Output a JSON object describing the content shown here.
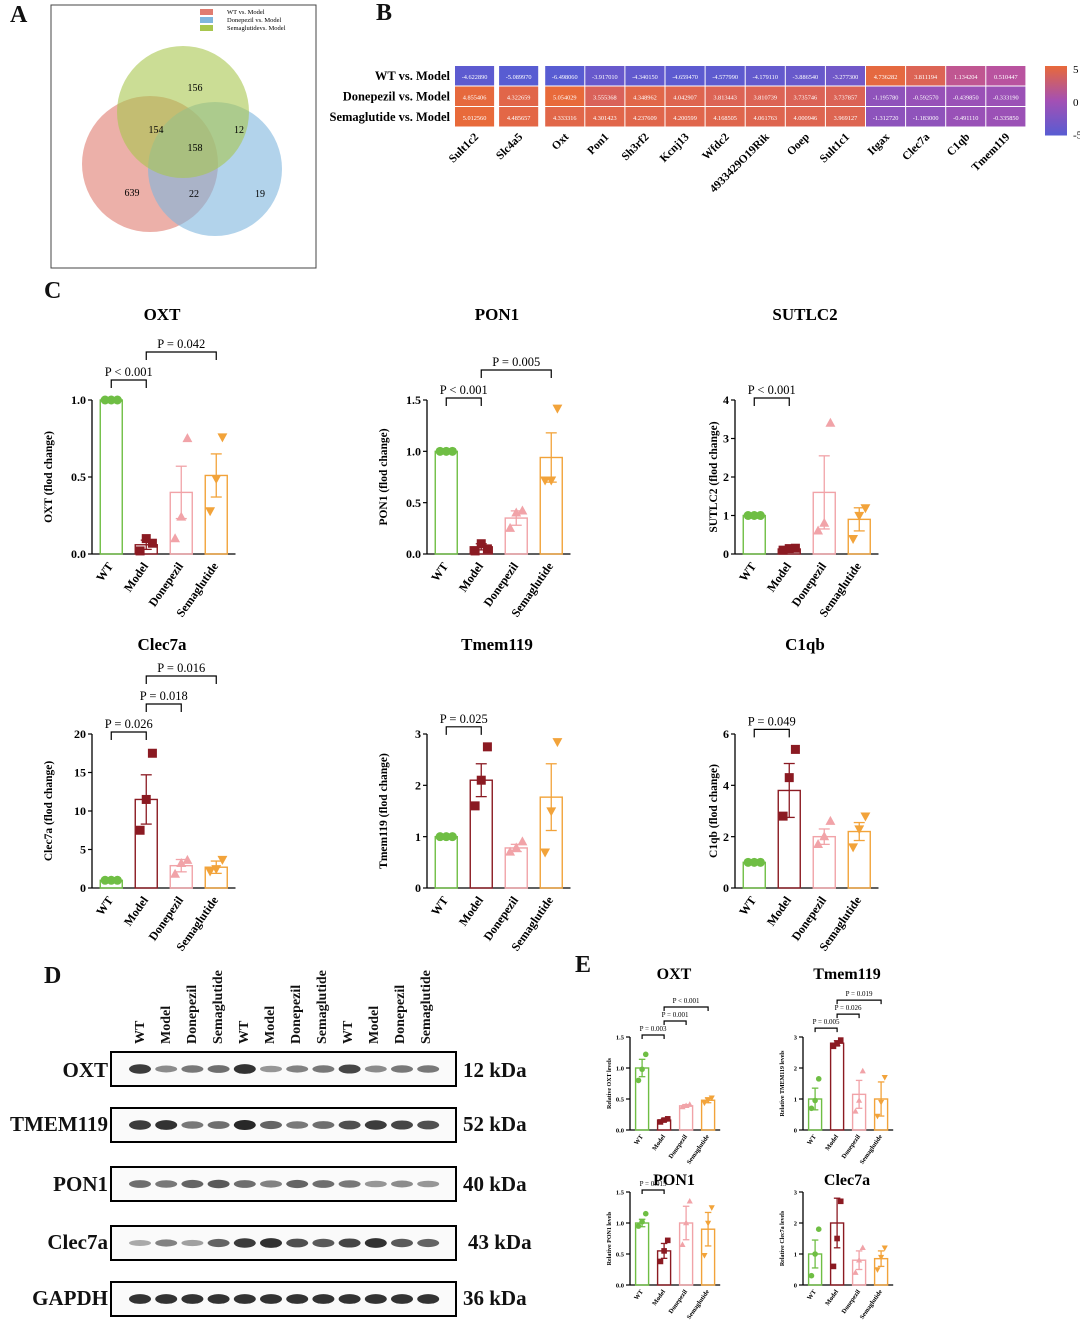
{
  "panels": {
    "a": "A",
    "b": "B",
    "c": "C",
    "d": "D",
    "e": "E"
  },
  "venn": {
    "legend": [
      "WT vs. Model",
      "Donepezil vs. Model",
      "Semaglutidevs. Model"
    ],
    "colors": [
      "#e07c70",
      "#7fb6dd",
      "#a8c64e"
    ],
    "regions": {
      "sema_only": "156",
      "sema_wt": "154",
      "sema_done": "12",
      "all": "158",
      "wt_only": "639",
      "wt_done": "22",
      "done_only": "19"
    }
  },
  "heatmap": {
    "rows": [
      "WT vs. Model",
      "Donepezil vs. Model",
      "Semaglutide vs. Model"
    ],
    "cols": [
      "Sult1c2",
      "Slc4a5",
      "Oxt",
      "Pon1",
      "Sh3rf2",
      "Kcnj13",
      "Wfdc2",
      "4933429O19Rik",
      "Ooep",
      "Sult1c1",
      "Itgax",
      "Clec7a",
      "C1qb",
      "Tmem119"
    ],
    "values": [
      [
        "-4.622890",
        "-5.089970",
        "-6.498060",
        "-3.917010",
        "-4.340150",
        "-4.659470",
        "-4.577990",
        "-4.179110",
        "-3.886540",
        "-3.277300",
        "4.736282",
        "3.811194",
        "1.134204",
        "0.510447"
      ],
      [
        "4.855406",
        "4.322659",
        "5.054029",
        "3.555368",
        "4.348962",
        "4.042907",
        "3.813443",
        "3.810739",
        "3.735746",
        "3.737857",
        "-1.195780",
        "-0.592570",
        "-0.439850",
        "-0.333190"
      ],
      [
        "5.012560",
        "4.485657",
        "4.333316",
        "4.301423",
        "4.237609",
        "4.200599",
        "4.168505",
        "4.061763",
        "4.000946",
        "3.969127",
        "-1.312720",
        "-1.183000",
        "-0.491110",
        "-0.335850"
      ]
    ],
    "scale": [
      "5",
      "0",
      "-5"
    ]
  },
  "chart_data": [
    {
      "type": "bar",
      "title": "OXT",
      "ylabel": "OXT (flod change)",
      "categories": [
        "WT",
        "Model",
        "Donepezil",
        "Semaglutide"
      ],
      "values": [
        1.0,
        0.06,
        0.4,
        0.51
      ],
      "sem": [
        0,
        0.03,
        0.17,
        0.14
      ],
      "ylim": [
        0,
        1.0
      ],
      "yticks": [
        "0.0",
        "0.5",
        "1.0"
      ],
      "points": [
        [
          1,
          1,
          1
        ],
        [
          0.02,
          0.1,
          0.07
        ],
        [
          0.1,
          0.24,
          0.75
        ],
        [
          0.28,
          0.49,
          0.76
        ]
      ],
      "comparisons": [
        {
          "text": "P < 0.001",
          "from": 0,
          "to": 1
        },
        {
          "text": "P = 0.042",
          "from": 1,
          "to": 3
        }
      ]
    },
    {
      "type": "bar",
      "title": "PON1",
      "ylabel": "PON1 (flod change)",
      "categories": [
        "WT",
        "Model",
        "Donepezil",
        "Semaglutide"
      ],
      "values": [
        1.0,
        0.07,
        0.35,
        0.94
      ],
      "sem": [
        0,
        0.03,
        0.07,
        0.24
      ],
      "ylim": [
        0,
        1.5
      ],
      "yticks": [
        "0.0",
        "0.5",
        "1.0",
        "1.5"
      ],
      "points": [
        [
          1,
          1,
          1
        ],
        [
          0.03,
          0.1,
          0.05
        ],
        [
          0.25,
          0.4,
          0.42
        ],
        [
          0.72,
          0.72,
          1.42
        ]
      ],
      "comparisons": [
        {
          "text": "P < 0.001",
          "from": 0,
          "to": 1
        },
        {
          "text": "P = 0.005",
          "from": 1,
          "to": 3
        }
      ]
    },
    {
      "type": "bar",
      "title": "SUTLC2",
      "ylabel": "SUTLC2 (flod change)",
      "categories": [
        "WT",
        "Model",
        "Donepezil",
        "Semaglutide"
      ],
      "values": [
        1.0,
        0.13,
        1.6,
        0.9
      ],
      "sem": [
        0,
        0.03,
        0.95,
        0.3
      ],
      "ylim": [
        0,
        4
      ],
      "yticks": [
        "0",
        "1",
        "2",
        "3",
        "4"
      ],
      "points": [
        [
          1,
          1,
          1
        ],
        [
          0.1,
          0.14,
          0.15
        ],
        [
          0.6,
          0.8,
          3.4
        ],
        [
          0.4,
          1.0,
          1.2
        ]
      ],
      "comparisons": [
        {
          "text": "P < 0.001",
          "from": 0,
          "to": 1
        }
      ]
    },
    {
      "type": "bar",
      "title": "Clec7a",
      "ylabel": "Clec7a (flod change)",
      "categories": [
        "WT",
        "Model",
        "Donepezil",
        "Semaglutide"
      ],
      "values": [
        1.0,
        11.5,
        2.9,
        2.7
      ],
      "sem": [
        0,
        3.2,
        0.8,
        0.8
      ],
      "ylim": [
        0,
        20
      ],
      "yticks": [
        "0",
        "5",
        "10",
        "15",
        "20"
      ],
      "points": [
        [
          1,
          1,
          1
        ],
        [
          7.5,
          11.5,
          17.5
        ],
        [
          1.8,
          3.2,
          3.6
        ],
        [
          2.2,
          2.5,
          3.7
        ]
      ],
      "comparisons": [
        {
          "text": "P = 0.026",
          "from": 0,
          "to": 1
        },
        {
          "text": "P = 0.018",
          "from": 1,
          "to": 2
        },
        {
          "text": "P = 0.016",
          "from": 1,
          "to": 3
        }
      ]
    },
    {
      "type": "bar",
      "title": "Tmem119",
      "ylabel": "Tmem119 (flod change)",
      "categories": [
        "WT",
        "Model",
        "Donepezil",
        "Semaglutide"
      ],
      "values": [
        1.0,
        2.1,
        0.78,
        1.77
      ],
      "sem": [
        0,
        0.32,
        0.07,
        0.65
      ],
      "ylim": [
        0,
        3
      ],
      "yticks": [
        "0",
        "1",
        "2",
        "3"
      ],
      "points": [
        [
          1,
          1,
          1
        ],
        [
          1.6,
          2.1,
          2.75
        ],
        [
          0.7,
          0.78,
          0.9
        ],
        [
          0.7,
          1.5,
          2.85
        ]
      ],
      "comparisons": [
        {
          "text": "P = 0.025",
          "from": 0,
          "to": 1
        }
      ]
    },
    {
      "type": "bar",
      "title": "C1qb",
      "ylabel": "C1qb (flod change)",
      "categories": [
        "WT",
        "Model",
        "Donepezil",
        "Semaglutide"
      ],
      "values": [
        1.0,
        3.8,
        2.0,
        2.2
      ],
      "sem": [
        0,
        1.05,
        0.3,
        0.35
      ],
      "ylim": [
        0,
        6
      ],
      "yticks": [
        "0",
        "2",
        "4",
        "6"
      ],
      "points": [
        [
          1,
          1,
          1
        ],
        [
          2.8,
          4.3,
          5.4
        ],
        [
          1.7,
          2.0,
          2.6
        ],
        [
          1.6,
          2.3,
          2.8
        ]
      ],
      "comparisons": [
        {
          "text": "P = 0.049",
          "from": 0,
          "to": 1
        }
      ]
    },
    {
      "type": "bar",
      "title": "OXT",
      "ylabel": "Relative OXT levels",
      "categories": [
        "WT",
        "Model",
        "Donepezil",
        "Semaglutide"
      ],
      "values": [
        1.0,
        0.16,
        0.39,
        0.48
      ],
      "sem": [
        0.14,
        0.02,
        0.02,
        0.04
      ],
      "ylim": [
        0,
        1.5
      ],
      "yticks": [
        "0.0",
        "0.5",
        "1.0",
        "1.5"
      ],
      "points": [
        [
          0.8,
          0.98,
          1.22
        ],
        [
          0.13,
          0.16,
          0.18
        ],
        [
          0.37,
          0.39,
          0.41
        ],
        [
          0.44,
          0.48,
          0.52
        ]
      ],
      "comparisons": [
        {
          "text": "P = 0.003",
          "from": 0,
          "to": 1
        },
        {
          "text": "P = 0.001",
          "from": 1,
          "to": 2
        },
        {
          "text": "P < 0.001",
          "from": 1,
          "to": 3
        }
      ]
    },
    {
      "type": "bar",
      "title": "Tmem119",
      "ylabel": "Relative TMEM119 levels",
      "categories": [
        "WT",
        "Model",
        "Donepezil",
        "Semaglutide"
      ],
      "values": [
        1.0,
        2.8,
        1.15,
        1.0
      ],
      "sem": [
        0.35,
        0.08,
        0.45,
        0.55
      ],
      "ylim": [
        0,
        3
      ],
      "yticks": [
        "0",
        "1",
        "2",
        "3"
      ],
      "points": [
        [
          0.7,
          0.95,
          1.65
        ],
        [
          2.7,
          2.78,
          2.9
        ],
        [
          0.6,
          0.95,
          1.9
        ],
        [
          0.45,
          0.9,
          1.7
        ]
      ],
      "comparisons": [
        {
          "text": "P = 0.005",
          "from": 0,
          "to": 1
        },
        {
          "text": "P = 0.026",
          "from": 1,
          "to": 2
        },
        {
          "text": "P = 0.019",
          "from": 1,
          "to": 3
        }
      ]
    },
    {
      "type": "bar",
      "title": "PON1",
      "ylabel": "Relative PON1 levels",
      "categories": [
        "WT",
        "Model",
        "Donepezil",
        "Semaglutide"
      ],
      "values": [
        1.0,
        0.55,
        1.0,
        0.9
      ],
      "sem": [
        0.06,
        0.12,
        0.27,
        0.27
      ],
      "ylim": [
        0,
        1.5
      ],
      "yticks": [
        "0.0",
        "0.5",
        "1.0",
        "1.5"
      ],
      "points": [
        [
          0.95,
          1.02,
          1.15
        ],
        [
          0.38,
          0.55,
          0.72
        ],
        [
          0.65,
          1.0,
          1.35
        ],
        [
          0.48,
          1.0,
          1.25
        ]
      ],
      "comparisons": [
        {
          "text": "P = 0.015",
          "from": 0,
          "to": 1
        }
      ]
    },
    {
      "type": "bar",
      "title": "Clec7a",
      "ylabel": "Relative Clec7a levels",
      "categories": [
        "WT",
        "Model",
        "Donepezil",
        "Semaglutide"
      ],
      "values": [
        1.0,
        2.0,
        0.8,
        0.85
      ],
      "sem": [
        0.45,
        0.8,
        0.3,
        0.25
      ],
      "ylim": [
        0,
        3
      ],
      "yticks": [
        "0",
        "1",
        "2",
        "3"
      ],
      "points": [
        [
          0.3,
          1.0,
          1.8
        ],
        [
          0.6,
          1.5,
          2.7
        ],
        [
          0.4,
          0.8,
          1.2
        ],
        [
          0.5,
          0.9,
          1.2
        ]
      ],
      "comparisons": []
    }
  ],
  "barColors": [
    "#6fbe44",
    "#8b1a22",
    "#f1a3a8",
    "#f2a33a"
  ],
  "blot": {
    "lanes": [
      "WT",
      "Model",
      "Donepezil",
      "Semaglutide",
      "WT",
      "Model",
      "Donepezil",
      "Semaglutide",
      "WT",
      "Model",
      "Donepezil",
      "Semaglutide"
    ],
    "proteins": [
      {
        "name": "OXT",
        "kda": "12 kDa",
        "intensity": [
          0.85,
          0.45,
          0.55,
          0.6,
          0.9,
          0.4,
          0.5,
          0.55,
          0.8,
          0.45,
          0.55,
          0.55
        ]
      },
      {
        "name": "TMEM119",
        "kda": "52 kDa",
        "intensity": [
          0.85,
          0.9,
          0.55,
          0.6,
          0.95,
          0.65,
          0.55,
          0.6,
          0.75,
          0.85,
          0.8,
          0.75
        ]
      },
      {
        "name": "PON1",
        "kda": "40 kDa",
        "intensity": [
          0.6,
          0.55,
          0.65,
          0.7,
          0.6,
          0.5,
          0.65,
          0.6,
          0.55,
          0.4,
          0.45,
          0.4
        ]
      },
      {
        "name": "Clec7a",
        "kda": "43 kDa",
        "intensity": [
          0.3,
          0.5,
          0.35,
          0.65,
          0.85,
          0.9,
          0.75,
          0.7,
          0.8,
          0.9,
          0.7,
          0.65
        ]
      },
      {
        "name": "GAPDH",
        "kda": "36 kDa",
        "intensity": [
          0.9,
          0.9,
          0.9,
          0.9,
          0.9,
          0.9,
          0.9,
          0.9,
          0.9,
          0.9,
          0.9,
          0.9
        ]
      }
    ]
  }
}
